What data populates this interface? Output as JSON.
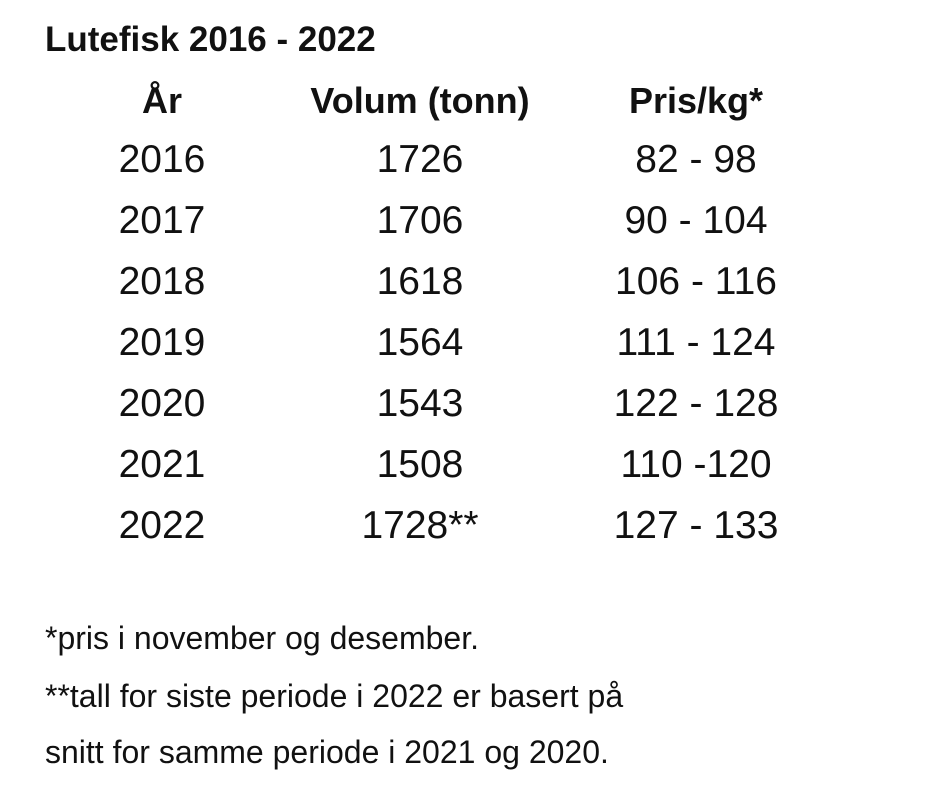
{
  "title": "Lutefisk 2016 - 2022",
  "columns": [
    "År",
    "Volum (tonn)",
    "Pris/kg*"
  ],
  "rows": [
    [
      "2016",
      "1726",
      "82 - 98"
    ],
    [
      "2017",
      "1706",
      "90 - 104"
    ],
    [
      "2018",
      "1618",
      "106 - 116"
    ],
    [
      "2019",
      "1564",
      "111 - 124"
    ],
    [
      "2020",
      "1543",
      "122 - 128"
    ],
    [
      "2021",
      "1508",
      "110 -120"
    ],
    [
      "2022",
      "1728**",
      "127 - 133"
    ]
  ],
  "notes": [
    "*pris i november og desember.",
    "**tall for siste periode i 2022 er basert på",
    "snitt for samme periode i 2021 og 2020."
  ]
}
